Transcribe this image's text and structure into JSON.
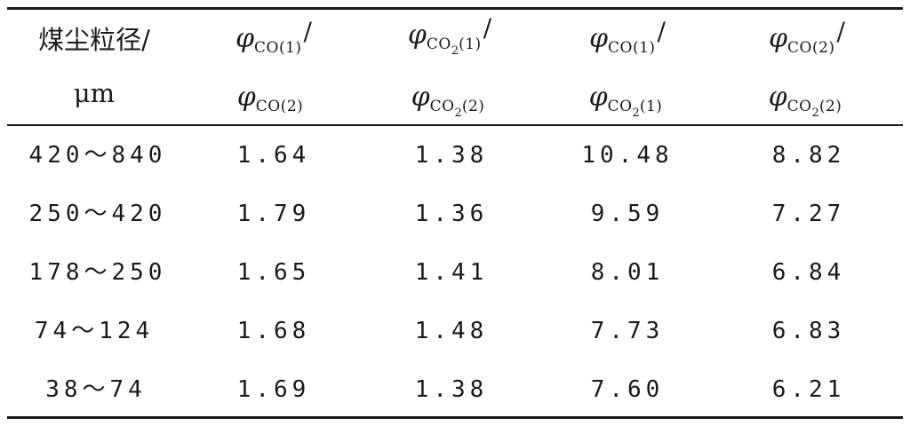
{
  "header": {
    "col0_line1": "煤尘粒径/",
    "col0_line2": "μm",
    "phi": "φ",
    "slash": "/",
    "sub_co1": "CO(1)",
    "sub_co2": "CO(2)",
    "sub_co2_gas": "CO",
    "sub_2": "2",
    "sub_idx1": "(1)",
    "sub_idx2": "(2)"
  },
  "rows": [
    {
      "size": "420～840",
      "c1": "1.64",
      "c2": "1.38",
      "c3": "10.48",
      "c4": "8.82"
    },
    {
      "size": "250～420",
      "c1": "1.79",
      "c2": "1.36",
      "c3": "9.59",
      "c4": "7.27"
    },
    {
      "size": "178～250",
      "c1": "1.65",
      "c2": "1.41",
      "c3": "8.01",
      "c4": "6.84"
    },
    {
      "size": "74～124",
      "c1": "1.68",
      "c2": "1.48",
      "c3": "7.73",
      "c4": "6.83"
    },
    {
      "size": "38～74",
      "c1": "1.69",
      "c2": "1.38",
      "c3": "7.60",
      "c4": "6.21"
    }
  ]
}
